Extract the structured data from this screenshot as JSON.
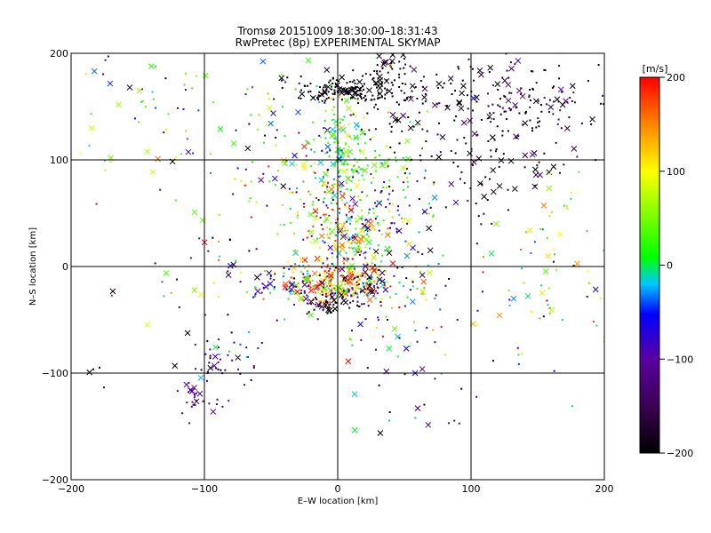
{
  "chart_data": {
    "type": "scatter",
    "title": "Tromsø 20151009 18:30:00–18:31:43",
    "subtitle": "RwPretec (8p) EXPERIMENTAL SKYMAP",
    "xlabel": "E–W location [km]",
    "ylabel": "N–S location [km]",
    "xlim": [
      -200,
      200
    ],
    "ylim": [
      -200,
      200
    ],
    "x_ticks": [
      "−200",
      "−100",
      "0",
      "100",
      "200"
    ],
    "y_ticks": [
      "−200",
      "−100",
      "0",
      "100",
      "200"
    ],
    "grid": true,
    "marker_kinds": [
      "dot",
      "cross"
    ],
    "colorbar": {
      "label": "[m/s]",
      "range": [
        -200,
        200
      ],
      "ticks": [
        "200",
        "100",
        "0",
        "−100",
        "−200"
      ],
      "colormap": [
        "#000000",
        "#3a0050",
        "#5a00a0",
        "#0000ff",
        "#00c8ff",
        "#00ff00",
        "#ffff00",
        "#ff8000",
        "#ff0000"
      ]
    },
    "clusters": [
      {
        "x": 10,
        "y": 165,
        "sx": 22,
        "sy": 6,
        "n": 160,
        "v": -200,
        "vsd": 10
      },
      {
        "x": 38,
        "y": 185,
        "sx": 8,
        "sy": 8,
        "n": 40,
        "v": -195,
        "vsd": 15
      },
      {
        "x": 110,
        "y": 140,
        "sx": 50,
        "sy": 38,
        "n": 260,
        "v": -185,
        "vsd": 25
      },
      {
        "x": 150,
        "y": 150,
        "sx": 30,
        "sy": 30,
        "n": 60,
        "v": -140,
        "vsd": 40
      },
      {
        "x": 0,
        "y": 120,
        "sx": 10,
        "sy": 16,
        "n": 100,
        "v": 20,
        "vsd": 40
      },
      {
        "x": 18,
        "y": 95,
        "sx": 18,
        "sy": 8,
        "n": 60,
        "v": 30,
        "vsd": 30
      },
      {
        "x": 22,
        "y": 55,
        "sx": 30,
        "sy": 25,
        "n": 140,
        "v": -40,
        "vsd": 70
      },
      {
        "x": 10,
        "y": 25,
        "sx": 15,
        "sy": 18,
        "n": 120,
        "v": 50,
        "vsd": 80
      },
      {
        "x": -10,
        "y": 50,
        "sx": 20,
        "sy": 25,
        "n": 80,
        "v": 120,
        "vsd": 70
      },
      {
        "x": 0,
        "y": -15,
        "sx": 18,
        "sy": 9,
        "n": 200,
        "v": 150,
        "vsd": 70
      },
      {
        "x": -5,
        "y": -35,
        "sx": 12,
        "sy": 6,
        "n": 60,
        "v": -180,
        "vsd": 40
      },
      {
        "x": 20,
        "y": -15,
        "sx": 15,
        "sy": 12,
        "n": 70,
        "v": -90,
        "vsd": 90
      },
      {
        "x": -45,
        "y": -15,
        "sx": 25,
        "sy": 10,
        "n": 70,
        "v": -50,
        "vsd": 100
      },
      {
        "x": 45,
        "y": -30,
        "sx": 25,
        "sy": 25,
        "n": 60,
        "v": 0,
        "vsd": 130
      },
      {
        "x": -85,
        "y": -85,
        "sx": 15,
        "sy": 12,
        "n": 45,
        "v": -140,
        "vsd": 60
      },
      {
        "x": -105,
        "y": -125,
        "sx": 9,
        "sy": 9,
        "n": 30,
        "v": -110,
        "vsd": 15
      },
      {
        "x": -70,
        "y": 110,
        "sx": 55,
        "sy": 50,
        "n": 150,
        "v": 0,
        "vsd": 110
      },
      {
        "x": -150,
        "y": 150,
        "sx": 25,
        "sy": 30,
        "n": 30,
        "v": -10,
        "vsd": 70
      },
      {
        "x": 120,
        "y": -40,
        "sx": 60,
        "sy": 50,
        "n": 60,
        "v": 0,
        "vsd": 120
      },
      {
        "x": 165,
        "y": 20,
        "sx": 20,
        "sy": 40,
        "n": 35,
        "v": 50,
        "vsd": 60
      },
      {
        "x": 60,
        "y": -110,
        "sx": 30,
        "sy": 30,
        "n": 25,
        "v": -80,
        "vsd": 90
      },
      {
        "x": -150,
        "y": -60,
        "sx": 30,
        "sy": 30,
        "n": 10,
        "v": -180,
        "vsd": 20
      },
      {
        "x": -100,
        "y": 0,
        "sx": 40,
        "sy": 40,
        "n": 20,
        "v": 0,
        "vsd": 120
      }
    ]
  }
}
